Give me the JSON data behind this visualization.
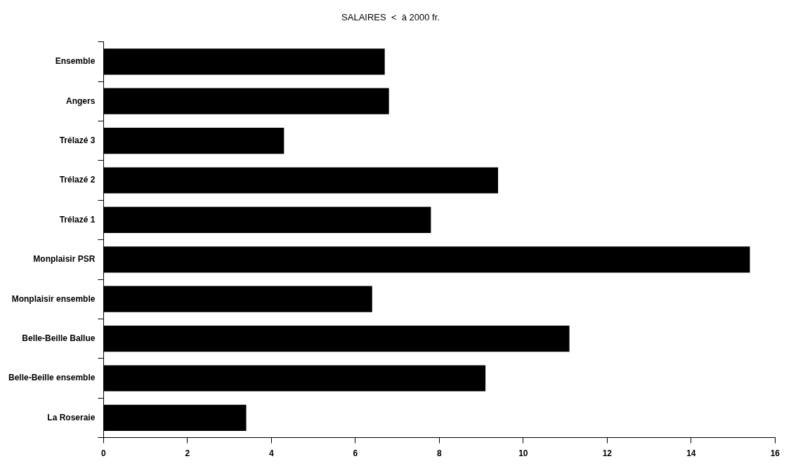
{
  "chart_data": {
    "type": "bar",
    "orientation": "horizontal",
    "title": "SALAIRES  <  à 2000 fr.",
    "categories": [
      "Ensemble",
      "Angers",
      "Trélazé 3",
      "Trélazé 2",
      "Trélazé 1",
      "Monplaisir PSR",
      "Monplaisir ensemble",
      "Belle-Beille Ballue",
      "Belle-Beille ensemble",
      "La Roseraie"
    ],
    "values": [
      6.7,
      6.8,
      4.3,
      9.4,
      7.8,
      15.4,
      6.4,
      11.1,
      9.1,
      3.4
    ],
    "color": "#000000",
    "xlim": [
      0,
      16
    ],
    "xticks": [
      0,
      2,
      4,
      6,
      8,
      10,
      12,
      14,
      16
    ],
    "grid": false,
    "legend": false
  }
}
